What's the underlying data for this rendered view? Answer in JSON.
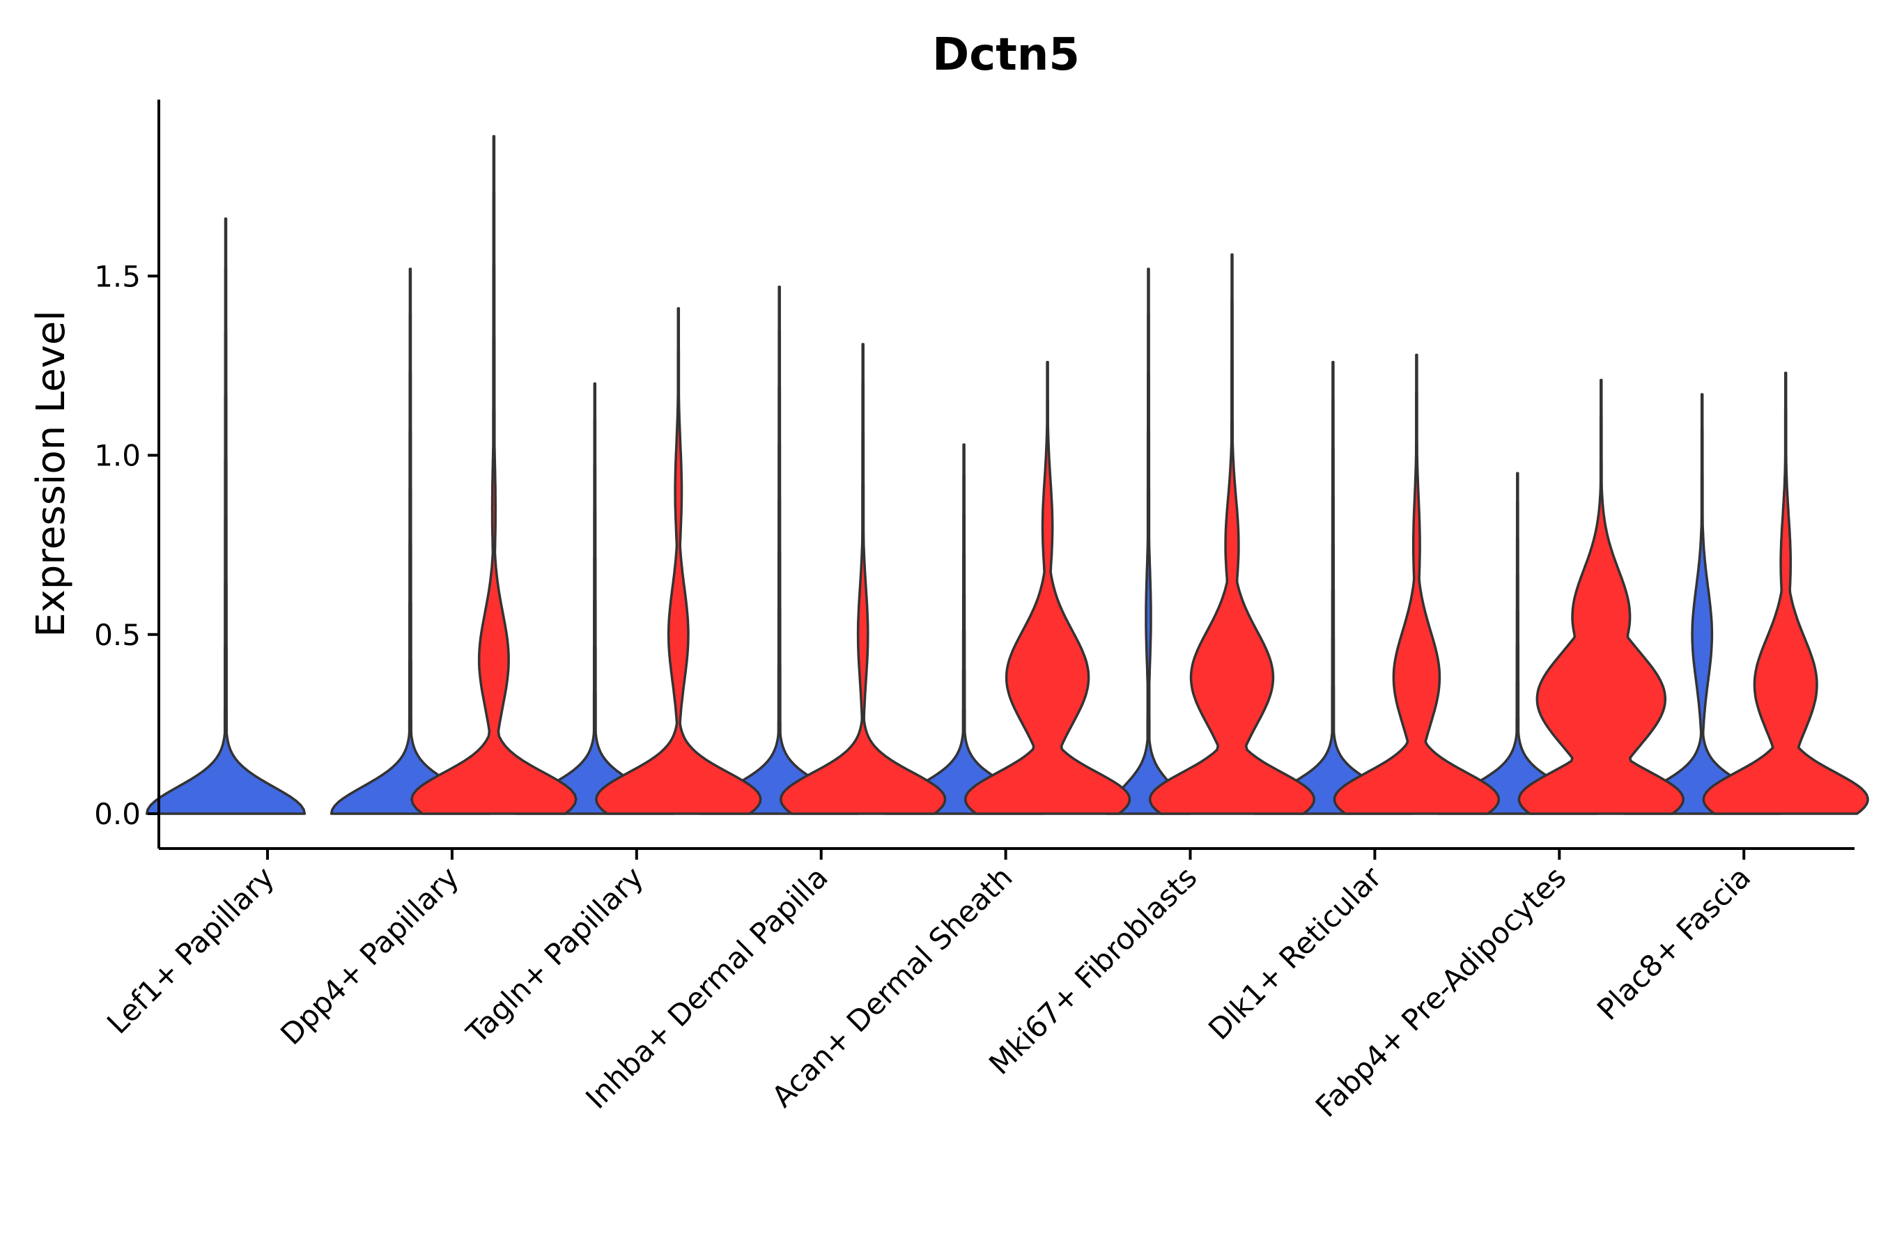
{
  "chart_data": {
    "type": "violin",
    "title": "Dctn5",
    "xlabel": "",
    "ylabel": "Expression Level",
    "ylim": [
      -0.1,
      1.98
    ],
    "yticks": [
      0.0,
      0.5,
      1.0,
      1.5
    ],
    "ytick_labels": [
      "0.0",
      "0.5",
      "1.0",
      "1.5"
    ],
    "categories": [
      "Lef1+ Papillary",
      "Dpp4+ Papillary",
      "Tagln+ Papillary",
      "Inhba+ Dermal Papilla",
      "Acan+ Dermal Sheath",
      "Mki67+ Fibroblasts",
      "Dlk1+ Reticular",
      "Fabp4+ Pre-Adipocytes",
      "Plac8+ Fascia"
    ],
    "colors": {
      "low": "#4169e1",
      "high": "#ff3030",
      "outline": "#333333"
    },
    "series": [
      {
        "name": "left",
        "color": "low",
        "violins": [
          {
            "max": 1.66,
            "peaks": [
              [
                0.0,
                0.96
              ]
            ]
          },
          {
            "max": 1.52,
            "peaks": [
              [
                0.0,
                0.96
              ]
            ]
          },
          {
            "max": 1.2,
            "peaks": [
              [
                0.0,
                0.96
              ]
            ]
          },
          {
            "max": 1.47,
            "peaks": [
              [
                0.0,
                0.96
              ]
            ]
          },
          {
            "max": 1.03,
            "peaks": [
              [
                0.0,
                0.96
              ]
            ]
          },
          {
            "max": 1.52,
            "peaks": [
              [
                0.0,
                0.5
              ],
              [
                0.55,
                0.03
              ]
            ]
          },
          {
            "max": 1.26,
            "peaks": [
              [
                0.0,
                0.96
              ]
            ]
          },
          {
            "max": 0.95,
            "peaks": [
              [
                0.0,
                0.96
              ]
            ]
          },
          {
            "max": 1.17,
            "peaks": [
              [
                0.0,
                0.95
              ],
              [
                0.5,
                0.12
              ]
            ]
          }
        ]
      },
      {
        "name": "right",
        "color": "high",
        "violins": [
          null,
          {
            "max": 1.89,
            "peaks": [
              [
                0.04,
                1.0
              ],
              [
                0.43,
                0.18
              ],
              [
                0.85,
                0.02
              ]
            ]
          },
          {
            "max": 1.41,
            "peaks": [
              [
                0.04,
                1.0
              ],
              [
                0.5,
                0.12
              ],
              [
                0.9,
                0.04
              ]
            ]
          },
          {
            "max": 1.31,
            "peaks": [
              [
                0.04,
                1.0
              ],
              [
                0.5,
                0.06
              ]
            ]
          },
          {
            "max": 1.26,
            "peaks": [
              [
                0.04,
                1.0
              ],
              [
                0.38,
                0.5
              ],
              [
                0.8,
                0.06
              ]
            ]
          },
          {
            "max": 1.56,
            "peaks": [
              [
                0.04,
                1.0
              ],
              [
                0.38,
                0.5
              ],
              [
                0.75,
                0.08
              ]
            ]
          },
          {
            "max": 1.28,
            "peaks": [
              [
                0.04,
                1.0
              ],
              [
                0.38,
                0.28
              ],
              [
                0.75,
                0.04
              ]
            ]
          },
          {
            "max": 1.21,
            "peaks": [
              [
                0.04,
                1.0
              ],
              [
                0.32,
                0.78
              ],
              [
                0.55,
                0.35
              ]
            ]
          },
          {
            "max": 1.23,
            "peaks": [
              [
                0.04,
                1.0
              ],
              [
                0.36,
                0.38
              ],
              [
                0.7,
                0.06
              ]
            ]
          }
        ]
      }
    ]
  }
}
